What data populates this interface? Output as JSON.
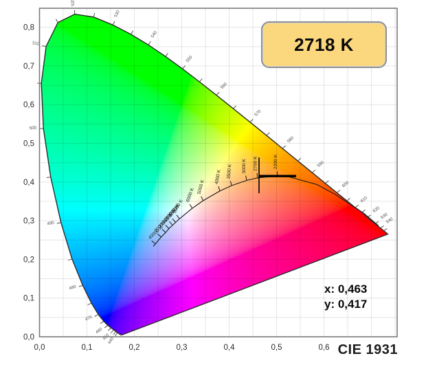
{
  "header": {
    "badge_label": "2718 K"
  },
  "readout": {
    "x_label": "x: 0,463",
    "y_label": "y: 0,417"
  },
  "footer": {
    "diagram_label": "CIE 1931"
  },
  "chart_data": {
    "type": "scatter",
    "subtype": "cie-1931-chromaticity-diagram",
    "title": "2718 K",
    "footer_label": "CIE 1931",
    "grid": true,
    "axes": {
      "xlim": [
        0,
        0.754
      ],
      "ylim": [
        0,
        0.849
      ],
      "tick_step": 0.1,
      "grid_step": 0.05,
      "x_tick_labels": [
        "0,0",
        "0,1",
        "0,2",
        "0,3",
        "0,4",
        "0,5",
        "0,6"
      ],
      "y_tick_labels": [
        "0,0",
        "0,1",
        "0,2",
        "0,3",
        "0,4",
        "0,5",
        "0,6",
        "0,7",
        "0,8"
      ]
    },
    "marker": {
      "x": 0.463,
      "y": 0.417,
      "label_x": "x: 0,463",
      "label_y": "y: 0,417",
      "cct": "2718 K"
    },
    "spectral_locus": [
      [
        380,
        0.1741,
        0.005
      ],
      [
        390,
        0.1738,
        0.0049
      ],
      [
        400,
        0.1733,
        0.0048
      ],
      [
        410,
        0.1726,
        0.0048
      ],
      [
        420,
        0.1714,
        0.0051
      ],
      [
        430,
        0.1689,
        0.0069
      ],
      [
        440,
        0.1644,
        0.0109
      ],
      [
        445,
        0.1611,
        0.0138
      ],
      [
        450,
        0.1566,
        0.0177
      ],
      [
        455,
        0.151,
        0.0231
      ],
      [
        460,
        0.144,
        0.0297
      ],
      [
        465,
        0.1355,
        0.0399
      ],
      [
        470,
        0.1241,
        0.0578
      ],
      [
        475,
        0.1096,
        0.0868
      ],
      [
        480,
        0.0913,
        0.1327
      ],
      [
        485,
        0.0687,
        0.2007
      ],
      [
        490,
        0.0454,
        0.295
      ],
      [
        495,
        0.0236,
        0.4127
      ],
      [
        500,
        0.0082,
        0.5384
      ],
      [
        505,
        0.0039,
        0.6548
      ],
      [
        510,
        0.0139,
        0.7502
      ],
      [
        515,
        0.0389,
        0.812
      ],
      [
        520,
        0.0743,
        0.8338
      ],
      [
        525,
        0.1142,
        0.8262
      ],
      [
        530,
        0.1547,
        0.8059
      ],
      [
        535,
        0.1929,
        0.7816
      ],
      [
        540,
        0.2296,
        0.7543
      ],
      [
        545,
        0.2658,
        0.7243
      ],
      [
        550,
        0.3016,
        0.6923
      ],
      [
        555,
        0.3373,
        0.6589
      ],
      [
        560,
        0.3731,
        0.6245
      ],
      [
        565,
        0.4087,
        0.5896
      ],
      [
        570,
        0.4441,
        0.5547
      ],
      [
        575,
        0.4788,
        0.5202
      ],
      [
        580,
        0.5125,
        0.4866
      ],
      [
        585,
        0.5448,
        0.4544
      ],
      [
        590,
        0.5752,
        0.4242
      ],
      [
        595,
        0.6029,
        0.3965
      ],
      [
        600,
        0.627,
        0.3725
      ],
      [
        605,
        0.6482,
        0.3514
      ],
      [
        610,
        0.6658,
        0.334
      ],
      [
        615,
        0.6801,
        0.3217
      ],
      [
        620,
        0.6915,
        0.3083
      ],
      [
        630,
        0.7079,
        0.292
      ],
      [
        640,
        0.719,
        0.2809
      ],
      [
        650,
        0.726,
        0.274
      ],
      [
        660,
        0.73,
        0.27
      ],
      [
        680,
        0.7334,
        0.2666
      ],
      [
        700,
        0.7347,
        0.2653
      ]
    ],
    "wavelength_ticks": [
      {
        "lab": "440",
        "x": 0.1644,
        "y": 0.0109,
        "a": 237
      },
      {
        "lab": "",
        "x": 0.1611,
        "y": 0.0138,
        "a": 232
      },
      {
        "lab": "450",
        "x": 0.1566,
        "y": 0.0177,
        "a": 228
      },
      {
        "lab": "",
        "x": 0.151,
        "y": 0.0231,
        "a": 223
      },
      {
        "lab": "460",
        "x": 0.144,
        "y": 0.0297,
        "a": 218
      },
      {
        "lab": "",
        "x": 0.1355,
        "y": 0.0399,
        "a": 213
      },
      {
        "lab": "470",
        "x": 0.1241,
        "y": 0.0578,
        "a": 208
      },
      {
        "lab": "",
        "x": 0.1096,
        "y": 0.0868,
        "a": 203
      },
      {
        "lab": "480",
        "x": 0.0913,
        "y": 0.1327,
        "a": 198
      },
      {
        "lab": "",
        "x": 0.0687,
        "y": 0.2007,
        "a": 194
      },
      {
        "lab": "490",
        "x": 0.0454,
        "y": 0.295,
        "a": 190
      },
      {
        "lab": "",
        "x": 0.0236,
        "y": 0.4127,
        "a": 187
      },
      {
        "lab": "500",
        "x": 0.0082,
        "y": 0.5384,
        "a": 184
      },
      {
        "lab": "",
        "x": 0.0039,
        "y": 0.6548,
        "a": 178
      },
      {
        "lab": "510",
        "x": 0.0139,
        "y": 0.7502,
        "a": 170
      },
      {
        "lab": "",
        "x": 0.0389,
        "y": 0.812,
        "a": 120
      },
      {
        "lab": "520",
        "x": 0.0743,
        "y": 0.8338,
        "a": 93
      },
      {
        "lab": "",
        "x": 0.1142,
        "y": 0.8262,
        "a": 76
      },
      {
        "lab": "530",
        "x": 0.1547,
        "y": 0.8059,
        "a": 64
      },
      {
        "lab": "",
        "x": 0.1929,
        "y": 0.7816,
        "a": 60
      },
      {
        "lab": "540",
        "x": 0.2296,
        "y": 0.7543,
        "a": 56
      },
      {
        "lab": "",
        "x": 0.2658,
        "y": 0.7243,
        "a": 53
      },
      {
        "lab": "550",
        "x": 0.3016,
        "y": 0.6923,
        "a": 50
      },
      {
        "lab": "",
        "x": 0.3373,
        "y": 0.6589,
        "a": 48
      },
      {
        "lab": "560",
        "x": 0.3731,
        "y": 0.6245,
        "a": 46
      },
      {
        "lab": "",
        "x": 0.4087,
        "y": 0.5896,
        "a": 45
      },
      {
        "lab": "570",
        "x": 0.4441,
        "y": 0.5547,
        "a": 44
      },
      {
        "lab": "",
        "x": 0.4788,
        "y": 0.5202,
        "a": 43
      },
      {
        "lab": "580",
        "x": 0.5125,
        "y": 0.4866,
        "a": 42
      },
      {
        "lab": "",
        "x": 0.5448,
        "y": 0.4544,
        "a": 41
      },
      {
        "lab": "590",
        "x": 0.5752,
        "y": 0.4242,
        "a": 40
      },
      {
        "lab": "",
        "x": 0.6029,
        "y": 0.3965,
        "a": 39
      },
      {
        "lab": "600",
        "x": 0.627,
        "y": 0.3725,
        "a": 38
      },
      {
        "lab": "",
        "x": 0.6482,
        "y": 0.3514,
        "a": 38
      },
      {
        "lab": "610",
        "x": 0.6658,
        "y": 0.334,
        "a": 37
      },
      {
        "lab": "",
        "x": 0.6801,
        "y": 0.3217,
        "a": 36
      },
      {
        "lab": "620",
        "x": 0.6915,
        "y": 0.3083,
        "a": 36
      },
      {
        "lab": "630",
        "x": 0.7079,
        "y": 0.292,
        "a": 35
      },
      {
        "lab": "640",
        "x": 0.719,
        "y": 0.2809,
        "a": 34
      },
      {
        "lab": "",
        "x": 0.726,
        "y": 0.274,
        "a": 33
      }
    ],
    "cct_ticks": [
      {
        "label": "2200 K",
        "x": 0.5018,
        "y": 0.4152,
        "a": 93,
        "tr": -90
      },
      {
        "label": "2700 K",
        "x": 0.4599,
        "y": 0.4106,
        "a": 97,
        "tr": -90
      },
      {
        "label": "3000 K",
        "x": 0.4369,
        "y": 0.4041,
        "a": 100,
        "tr": -90
      },
      {
        "label": "3500 K",
        "x": 0.4053,
        "y": 0.3907,
        "a": 105,
        "tr": -85
      },
      {
        "label": "4000 K",
        "x": 0.3805,
        "y": 0.3768,
        "a": 108,
        "tr": -80
      },
      {
        "label": "5000 K",
        "x": 0.3451,
        "y": 0.3516,
        "a": 115,
        "tr": -75
      },
      {
        "label": "6000 K",
        "x": 0.3221,
        "y": 0.3318,
        "a": 120,
        "tr": -70
      },
      {
        "label": "8000 K",
        "x": 0.2952,
        "y": 0.3048,
        "a": 127,
        "tr": -60
      },
      {
        "label": "9000 K",
        "x": 0.2869,
        "y": 0.2956,
        "a": 130,
        "tr": -55
      },
      {
        "label": "10000 K",
        "x": 0.2807,
        "y": 0.2884,
        "a": 132,
        "tr": -52
      },
      {
        "label": "12000 K",
        "x": 0.273,
        "y": 0.2795,
        "a": 134,
        "tr": -50
      },
      {
        "label": "15000 K",
        "x": 0.266,
        "y": 0.2693,
        "a": 136,
        "tr": -48
      },
      {
        "label": "20000 K",
        "x": 0.2565,
        "y": 0.2577,
        "a": 138,
        "tr": -45
      },
      {
        "label": "40000 K",
        "x": 0.2445,
        "y": 0.24,
        "a": 140,
        "tr": -43
      }
    ],
    "planckian_locus": [
      [
        0.24,
        0.2335
      ],
      [
        0.2445,
        0.24
      ],
      [
        0.2565,
        0.2577
      ],
      [
        0.266,
        0.2693
      ],
      [
        0.273,
        0.2795
      ],
      [
        0.2807,
        0.2884
      ],
      [
        0.2869,
        0.2956
      ],
      [
        0.2952,
        0.3048
      ],
      [
        0.3221,
        0.3318
      ],
      [
        0.3451,
        0.3516
      ],
      [
        0.3805,
        0.3768
      ],
      [
        0.4053,
        0.3907
      ],
      [
        0.4369,
        0.4041
      ],
      [
        0.4599,
        0.4106
      ],
      [
        0.5018,
        0.4152
      ],
      [
        0.5267,
        0.4133
      ],
      [
        0.5857,
        0.3932
      ],
      [
        0.625,
        0.367
      ],
      [
        0.6528,
        0.3444
      ],
      [
        0.685,
        0.318
      ],
      [
        0.715,
        0.287
      ]
    ],
    "colors": {
      "badge_fill": "#fbd77d",
      "badge_border": "#8f8f8f",
      "grid": "rgba(0,0,0,0.10)",
      "frame": "#7a7a7a"
    }
  }
}
